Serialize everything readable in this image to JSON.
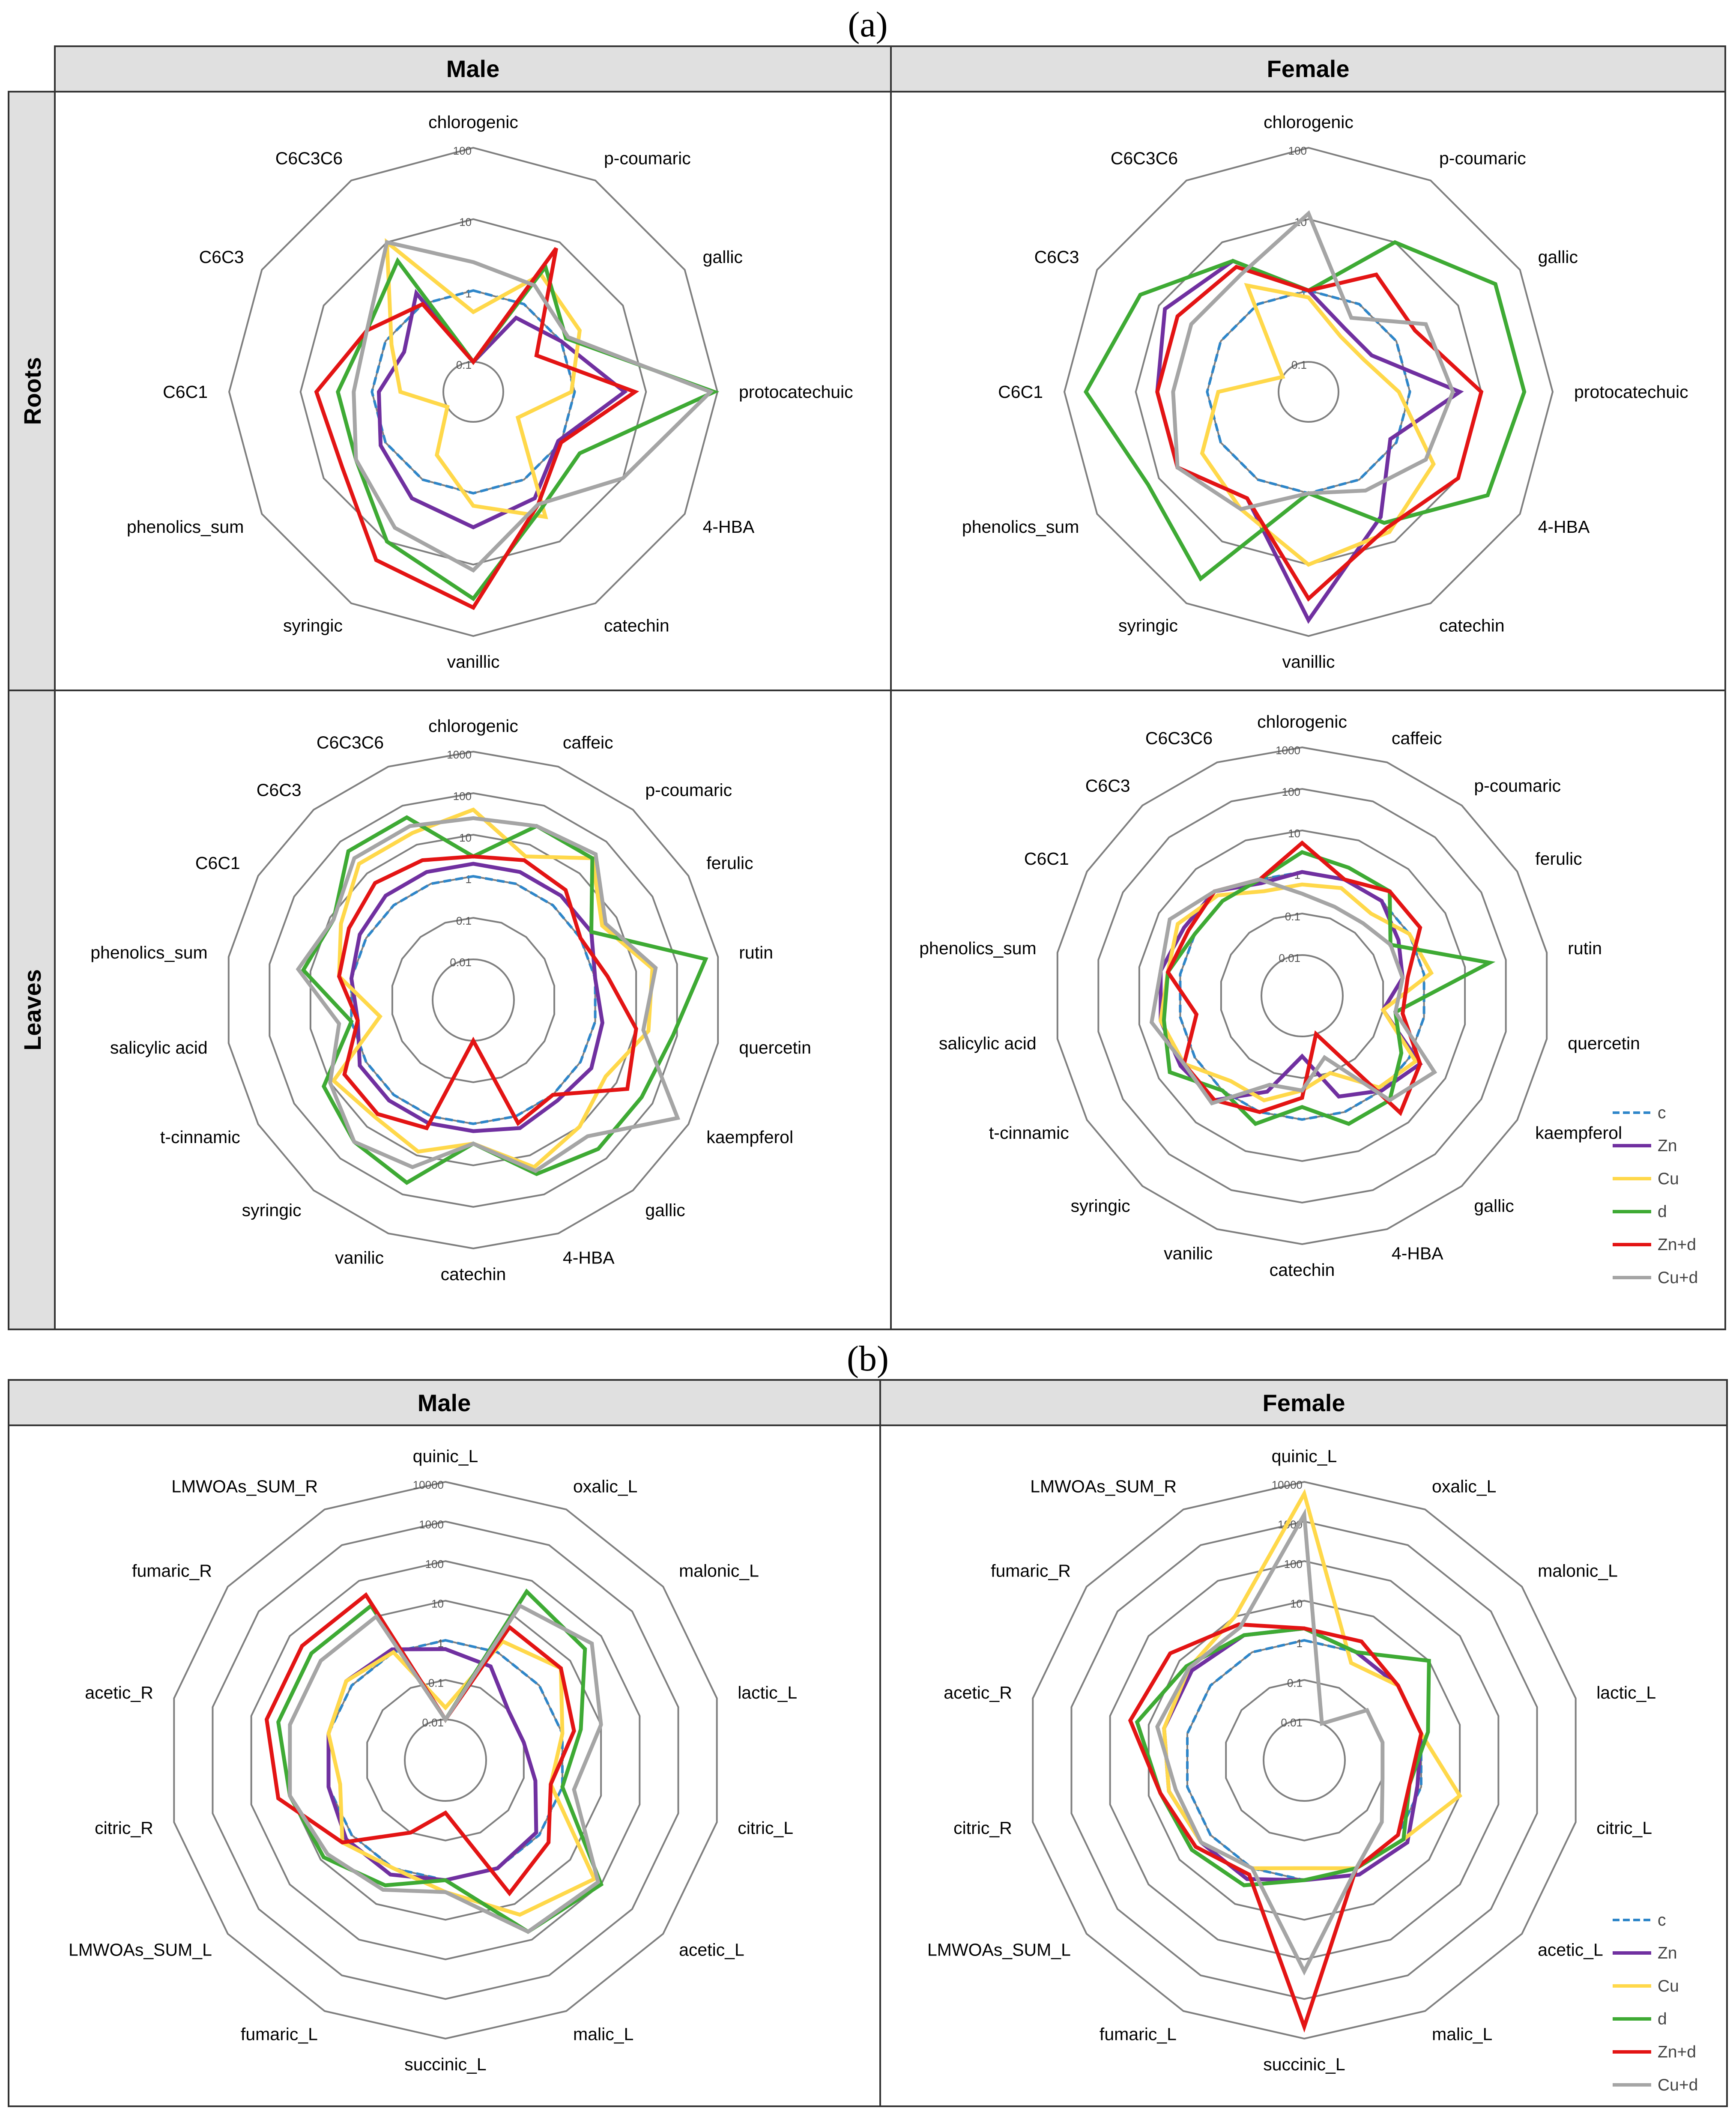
{
  "panels": {
    "a": "(a)",
    "b": "(b)"
  },
  "headers": {
    "male": "Male",
    "female": "Female",
    "roots": "Roots",
    "leaves": "Leaves"
  },
  "legend": [
    {
      "name": "c",
      "color": "#2e86c9",
      "dash": true
    },
    {
      "name": "Zn",
      "color": "#7030a0",
      "dash": false
    },
    {
      "name": "Cu",
      "color": "#ffd84a",
      "dash": false
    },
    {
      "name": "d",
      "color": "#3eaa34",
      "dash": false
    },
    {
      "name": "Zn+d",
      "color": "#e31414",
      "dash": false
    },
    {
      "name": "Cu+d",
      "color": "#a5a5a5",
      "dash": false
    }
  ],
  "chart_data": [
    {
      "type": "radar",
      "id": "a-male-roots",
      "scale": "log",
      "ring_labels": [
        "0.1",
        "1",
        "10",
        "100"
      ],
      "axes": [
        "chlorogenic",
        "p-coumaric",
        "gallic",
        "protocatechuic",
        "4-HBA",
        "catechin",
        "vanillic",
        "syringic",
        "phenolics_sum",
        "C6C1",
        "C6C3",
        "C6C3C6"
      ],
      "series": [
        {
          "name": "c",
          "values": [
            1,
            1,
            1,
            1,
            1,
            1,
            1,
            1,
            1,
            1,
            1,
            1
          ]
        },
        {
          "name": "Zn",
          "values": [
            0.05,
            0.6,
            1,
            5,
            0.9,
            2,
            3,
            2,
            1.2,
            0.8,
            0.5,
            1.5
          ]
        },
        {
          "name": "Cu",
          "values": [
            0.5,
            3,
            2,
            0.9,
            0.2,
            4,
            1.5,
            0.4,
            0.05,
            0.4,
            0.8,
            10
          ]
        },
        {
          "name": "d",
          "values": [
            0.05,
            4,
            1.2,
            90,
            2,
            3,
            30,
            10,
            3,
            3,
            2,
            5
          ]
        },
        {
          "name": "Zn+d",
          "values": [
            0.05,
            8,
            0.4,
            7,
            1,
            2.5,
            40,
            20,
            5,
            6,
            2,
            1
          ]
        },
        {
          "name": "Cu+d",
          "values": [
            2.5,
            2,
            1.3,
            80,
            10,
            2.5,
            12,
            6,
            3,
            1.8,
            2,
            10
          ]
        }
      ]
    },
    {
      "type": "radar",
      "id": "a-female-roots",
      "scale": "log",
      "ring_labels": [
        "0.1",
        "1",
        "10",
        "100"
      ],
      "axes": [
        "chlorogenic",
        "p-coumaric",
        "gallic",
        "protocatechuic",
        "4-HBA",
        "catechin",
        "vanillic",
        "syringic",
        "phenolics_sum",
        "C6C1",
        "C6C3",
        "C6C3C6"
      ],
      "series": [
        {
          "name": "c",
          "values": [
            1,
            1,
            1,
            1,
            1,
            1,
            1,
            1,
            1,
            1,
            1,
            1
          ]
        },
        {
          "name": "Zn",
          "values": [
            1,
            0.4,
            0.4,
            5,
            0.8,
            4,
            60,
            2,
            5,
            5,
            8,
            5
          ]
        },
        {
          "name": "Cu",
          "values": [
            0.8,
            0.3,
            0.3,
            0.7,
            4,
            7,
            10,
            3,
            2,
            0.7,
            0.07,
            2
          ]
        },
        {
          "name": "d",
          "values": [
            1,
            10,
            40,
            40,
            30,
            5,
            1,
            40,
            15,
            50,
            20,
            5
          ]
        },
        {
          "name": "Zn+d",
          "values": [
            1,
            3,
            2,
            10,
            10,
            6,
            30,
            2,
            5,
            5,
            5,
            4
          ]
        },
        {
          "name": "Cu+d",
          "values": [
            12,
            0.6,
            3,
            4,
            3,
            1.5,
            1,
            3,
            5,
            3,
            3,
            3
          ]
        }
      ]
    },
    {
      "type": "radar",
      "id": "a-male-leaves",
      "scale": "log",
      "ring_labels": [
        "0.01",
        "0.1",
        "1",
        "10",
        "100",
        "1000"
      ],
      "axes": [
        "chlorogenic",
        "caffeic",
        "p-coumaric",
        "ferulic",
        "rutin",
        "quercetin",
        "kaempferol",
        "gallic",
        "4-HBA",
        "catechin",
        "vanilic",
        "syringic",
        "t-cinnamic",
        "salicylic acid",
        "phenolics_sum",
        "C6C1",
        "C6C3",
        "C6C3C6"
      ],
      "series": [
        {
          "name": "c",
          "values": [
            1,
            1,
            1,
            1,
            1,
            1,
            1,
            1,
            1,
            1,
            1,
            1,
            1,
            1,
            1,
            1,
            1,
            1
          ]
        },
        {
          "name": "Zn",
          "values": [
            2,
            2,
            2,
            2,
            1,
            1.5,
            2,
            1.5,
            2,
            1.5,
            1.5,
            1.5,
            1.5,
            0.7,
            1,
            1.5,
            2,
            2
          ]
        },
        {
          "name": "Cu",
          "values": [
            40,
            5,
            30,
            4,
            25,
            20,
            5,
            10,
            20,
            3,
            8,
            5,
            8,
            0.2,
            2,
            5,
            20,
            20
          ]
        },
        {
          "name": "d",
          "values": [
            3,
            30,
            30,
            2,
            500,
            80,
            50,
            50,
            30,
            3,
            50,
            30,
            15,
            1,
            15,
            8,
            50,
            50
          ]
        },
        {
          "name": "Zn+d",
          "values": [
            3,
            4,
            3,
            1,
            2,
            10,
            20,
            1,
            1.5,
            0.01,
            2,
            4,
            4,
            0.7,
            2,
            3,
            5,
            4
          ]
        },
        {
          "name": "Cu+d",
          "values": [
            25,
            30,
            40,
            5,
            30,
            15,
            500,
            20,
            25,
            3,
            20,
            30,
            10,
            2,
            20,
            8,
            30,
            30
          ]
        }
      ]
    },
    {
      "type": "radar",
      "id": "a-female-leaves",
      "scale": "log",
      "ring_labels": [
        "0.01",
        "0.1",
        "1",
        "10",
        "100",
        "1000"
      ],
      "axes": [
        "chlorogenic",
        "caffeic",
        "p-coumaric",
        "ferulic",
        "rutin",
        "quercetin",
        "kaempferol",
        "gallic",
        "4-HBA",
        "catechin",
        "vanilic",
        "syringic",
        "t-cinnamic",
        "salicylic acid",
        "phenolics_sum",
        "C6C1",
        "C6C3",
        "C6C3C6"
      ],
      "series": [
        {
          "name": "c",
          "values": [
            1,
            1,
            1,
            1,
            1,
            1,
            1,
            1,
            1,
            1,
            1,
            1,
            1,
            1,
            1,
            1,
            1,
            1
          ]
        },
        {
          "name": "Zn",
          "values": [
            1,
            1,
            1,
            0.5,
            0.3,
            0.1,
            2,
            1,
            0.4,
            0.03,
            0.3,
            2,
            2.5,
            3,
            3,
            2,
            2,
            0.8
          ]
        },
        {
          "name": "Cu",
          "values": [
            0.5,
            0.6,
            0.4,
            1,
            1.5,
            0.1,
            1.5,
            0.8,
            0.1,
            0.2,
            0.5,
            0.5,
            2,
            3,
            2,
            3,
            1.5,
            0.5
          ]
        },
        {
          "name": "d",
          "values": [
            3,
            2,
            2,
            0.3,
            40,
            0.2,
            0.6,
            2,
            2,
            0.5,
            2,
            1,
            5,
            2.5,
            2,
            1,
            1,
            1
          ]
        },
        {
          "name": "Zn+d",
          "values": [
            5,
            1,
            2,
            2,
            0.4,
            0.3,
            2,
            5,
            0.01,
            0.3,
            1,
            2,
            2,
            0.4,
            2,
            1.5,
            2,
            1
          ]
        },
        {
          "name": "Cu+d",
          "values": [
            0.3,
            0.2,
            0.2,
            0.3,
            0.3,
            0.2,
            5,
            2,
            0.04,
            0.2,
            0.2,
            2.5,
            2,
            5,
            3,
            5,
            2,
            1
          ]
        }
      ]
    },
    {
      "type": "radar",
      "id": "b-male",
      "scale": "log",
      "ring_labels": [
        "0.01",
        "0.1",
        "1",
        "10",
        "100",
        "1000",
        "10000"
      ],
      "axes": [
        "quinic_L",
        "oxalic_L",
        "malonic_L",
        "lactic_L",
        "citric_L",
        "acetic_L",
        "malic_L",
        "succinic_L",
        "fumaric_L",
        "LMWOAs_SUM_L",
        "citric_R",
        "acetic_R",
        "fumaric_R",
        "LMWOAs_SUM_R"
      ],
      "series": [
        {
          "name": "c",
          "values": [
            1,
            1,
            1,
            1,
            1,
            1,
            1,
            1,
            1,
            1,
            1,
            1,
            1,
            1
          ]
        },
        {
          "name": "Zn",
          "values": [
            0.6,
            0.4,
            0.1,
            0.1,
            0.2,
            0.8,
            1,
            1,
            1.5,
            1.5,
            1,
            1,
            1.5,
            1.2
          ]
        },
        {
          "name": "Cu",
          "values": [
            0.02,
            2,
            5,
            1,
            0.5,
            60,
            20,
            2,
            1,
            2,
            0.5,
            1,
            1.5,
            1
          ]
        },
        {
          "name": "d",
          "values": [
            0.01,
            50,
            30,
            3,
            1,
            100,
            60,
            1,
            3,
            8,
            10,
            20,
            20,
            20
          ]
        },
        {
          "name": "Zn+d",
          "values": [
            0.01,
            5,
            5,
            2,
            0.5,
            2,
            5,
            0.02,
            0.1,
            2,
            20,
            40,
            40,
            40
          ]
        },
        {
          "name": "Cu+d",
          "values": [
            0.01,
            20,
            50,
            10,
            2,
            80,
            60,
            2,
            4,
            6,
            10,
            10,
            10,
            10
          ]
        }
      ]
    },
    {
      "type": "radar",
      "id": "b-female",
      "scale": "log",
      "ring_labels": [
        "0.01",
        "0.1",
        "1",
        "10",
        "100",
        "1000",
        "10000"
      ],
      "axes": [
        "quinic_L",
        "oxalic_L",
        "malonic_L",
        "lactic_L",
        "citric_L",
        "acetic_L",
        "malic_L",
        "succinic_L",
        "fumaric_L",
        "LMWOAs_SUM_L",
        "citric_R",
        "acetic_R",
        "fumaric_R",
        "LMWOAs_SUM_R"
      ],
      "series": [
        {
          "name": "c",
          "values": [
            1,
            1,
            1,
            1,
            1,
            1,
            1,
            1,
            1,
            1,
            1,
            1,
            1,
            1
          ]
        },
        {
          "name": "Zn",
          "values": [
            2,
            1,
            1,
            1,
            0.8,
            2,
            1.5,
            1,
            2,
            2,
            3,
            4,
            4,
            3
          ]
        },
        {
          "name": "Cu",
          "values": [
            5000,
            0.5,
            1,
            1,
            10,
            1.5,
            1,
            0.5,
            1,
            2,
            3,
            4,
            5,
            10
          ]
        },
        {
          "name": "d",
          "values": [
            2,
            1,
            10,
            1.5,
            0.5,
            1.5,
            1,
            1,
            3,
            4,
            5,
            20,
            6,
            3
          ]
        },
        {
          "name": "Zn+d",
          "values": [
            2,
            2,
            1,
            1,
            0.5,
            1,
            1,
            5000,
            1.5,
            3,
            5,
            30,
            20,
            6
          ]
        },
        {
          "name": "Cu+d",
          "values": [
            1500,
            0.01,
            0.1,
            0.1,
            0.1,
            0.3,
            1,
            200,
            1,
            2,
            2,
            6,
            5,
            5
          ]
        }
      ]
    }
  ]
}
